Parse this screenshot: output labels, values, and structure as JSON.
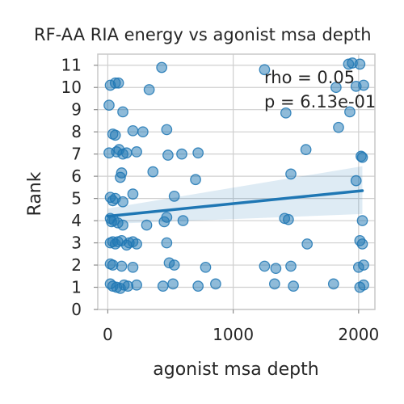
{
  "chart_data": {
    "type": "scatter",
    "title": "RF-AA RIA energy vs agonist msa depth",
    "xlabel": "agonist msa depth",
    "ylabel": "Rank",
    "xlim": [
      -80,
      2130
    ],
    "ylim": [
      0,
      11.5
    ],
    "x_ticks": [
      0,
      1000,
      2000
    ],
    "y_ticks": [
      0,
      1,
      2,
      3,
      4,
      5,
      6,
      7,
      8,
      9,
      10,
      11
    ],
    "grid": true,
    "annotations": [
      "rho = 0.05",
      "p = 6.13e-01"
    ],
    "point_color": "#1f77b4",
    "regression": {
      "x_range": [
        0,
        2030
      ],
      "y_start": 4.2,
      "y_end": 5.35,
      "ci_upper": [
        4.55,
        6.45
      ],
      "ci_lower": [
        3.85,
        4.3
      ]
    },
    "points": [
      [
        20,
        10.1
      ],
      [
        60,
        10.2
      ],
      [
        85,
        10.2
      ],
      [
        430,
        10.9
      ],
      [
        330,
        9.9
      ],
      [
        120,
        8.9
      ],
      [
        10,
        9.2
      ],
      [
        1250,
        10.8
      ],
      [
        1920,
        11.05
      ],
      [
        1950,
        11.1
      ],
      [
        2010,
        11.05
      ],
      [
        1980,
        10.05
      ],
      [
        2040,
        10.1
      ],
      [
        1820,
        10.0
      ],
      [
        1930,
        8.9
      ],
      [
        1420,
        8.85
      ],
      [
        1840,
        8.2
      ],
      [
        40,
        7.9
      ],
      [
        60,
        7.85
      ],
      [
        200,
        8.05
      ],
      [
        280,
        8.0
      ],
      [
        470,
        8.1
      ],
      [
        10,
        7.05
      ],
      [
        70,
        7.1
      ],
      [
        90,
        7.2
      ],
      [
        120,
        7.0
      ],
      [
        150,
        7.05
      ],
      [
        230,
        7.1
      ],
      [
        480,
        6.95
      ],
      [
        590,
        7.0
      ],
      [
        720,
        7.05
      ],
      [
        1580,
        7.2
      ],
      [
        2020,
        6.9
      ],
      [
        2030,
        6.85
      ],
      [
        110,
        6.15
      ],
      [
        100,
        5.95
      ],
      [
        360,
        6.2
      ],
      [
        700,
        5.85
      ],
      [
        1460,
        6.1
      ],
      [
        1980,
        5.8
      ],
      [
        20,
        5.05
      ],
      [
        40,
        4.9
      ],
      [
        60,
        5.0
      ],
      [
        120,
        4.85
      ],
      [
        200,
        5.2
      ],
      [
        530,
        5.1
      ],
      [
        20,
        4.1
      ],
      [
        30,
        3.95
      ],
      [
        50,
        4.0
      ],
      [
        80,
        3.9
      ],
      [
        120,
        3.8
      ],
      [
        310,
        3.8
      ],
      [
        450,
        3.95
      ],
      [
        470,
        4.15
      ],
      [
        600,
        4.0
      ],
      [
        1410,
        4.1
      ],
      [
        1440,
        4.05
      ],
      [
        2030,
        4.0
      ],
      [
        20,
        3.0
      ],
      [
        40,
        3.05
      ],
      [
        60,
        2.95
      ],
      [
        80,
        3.05
      ],
      [
        110,
        3.1
      ],
      [
        150,
        2.9
      ],
      [
        170,
        3.0
      ],
      [
        200,
        3.05
      ],
      [
        230,
        2.95
      ],
      [
        470,
        3.0
      ],
      [
        1590,
        2.95
      ],
      [
        2010,
        3.1
      ],
      [
        2030,
        2.95
      ],
      [
        20,
        2.05
      ],
      [
        40,
        2.0
      ],
      [
        110,
        1.95
      ],
      [
        200,
        1.9
      ],
      [
        490,
        2.1
      ],
      [
        530,
        2.0
      ],
      [
        780,
        1.9
      ],
      [
        1250,
        1.95
      ],
      [
        1340,
        1.85
      ],
      [
        1460,
        1.95
      ],
      [
        2000,
        1.9
      ],
      [
        2040,
        2.0
      ],
      [
        20,
        1.15
      ],
      [
        40,
        1.05
      ],
      [
        70,
        1.0
      ],
      [
        100,
        0.95
      ],
      [
        130,
        1.1
      ],
      [
        160,
        1.05
      ],
      [
        230,
        1.1
      ],
      [
        440,
        1.05
      ],
      [
        520,
        1.15
      ],
      [
        720,
        1.05
      ],
      [
        860,
        1.15
      ],
      [
        1330,
        1.15
      ],
      [
        1480,
        1.05
      ],
      [
        1800,
        1.15
      ],
      [
        2010,
        1.0
      ],
      [
        2040,
        1.1
      ]
    ]
  }
}
